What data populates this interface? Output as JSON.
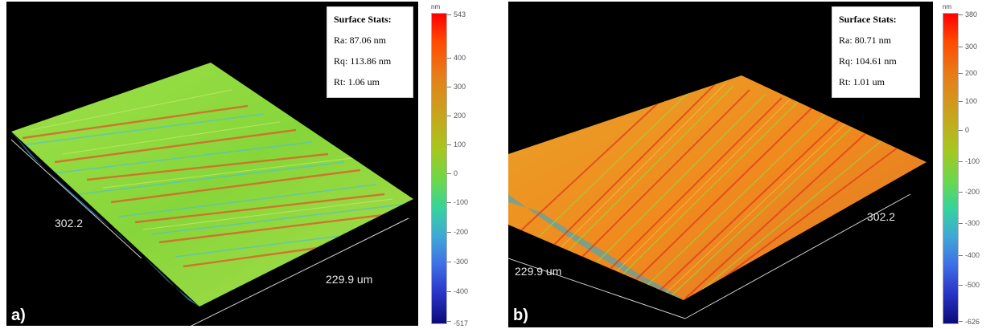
{
  "panels": [
    {
      "label": "a)",
      "stats": {
        "title": "Surface Stats:",
        "ra": "Ra: 87.06 nm",
        "rq": "Rq: 113.86 nm",
        "rt": "Rt: 1.06 um"
      },
      "axis_left": "302.2",
      "axis_right": "229.9 um",
      "colorbar": {
        "unit": "nm",
        "ticks": [
          "543",
          "400",
          "300",
          "200",
          "100",
          "0",
          "-100",
          "-200",
          "-300",
          "-400",
          "-517"
        ]
      }
    },
    {
      "label": "b)",
      "stats": {
        "title": "Surface Stats:",
        "ra": "Ra: 80.71 nm",
        "rq": "Rq: 104.61 nm",
        "rt": "Rt: 1.01 um"
      },
      "axis_left": "229.9 um",
      "axis_right": "302.2",
      "colorbar": {
        "unit": "nm",
        "ticks": [
          "380",
          "300",
          "200",
          "100",
          "0",
          "-100",
          "-200",
          "-300",
          "-400",
          "-500",
          "-626"
        ]
      }
    }
  ],
  "colors": {
    "background": "#000000",
    "surface_a": "#8fdc3c",
    "surface_b": "#f08a1e"
  }
}
